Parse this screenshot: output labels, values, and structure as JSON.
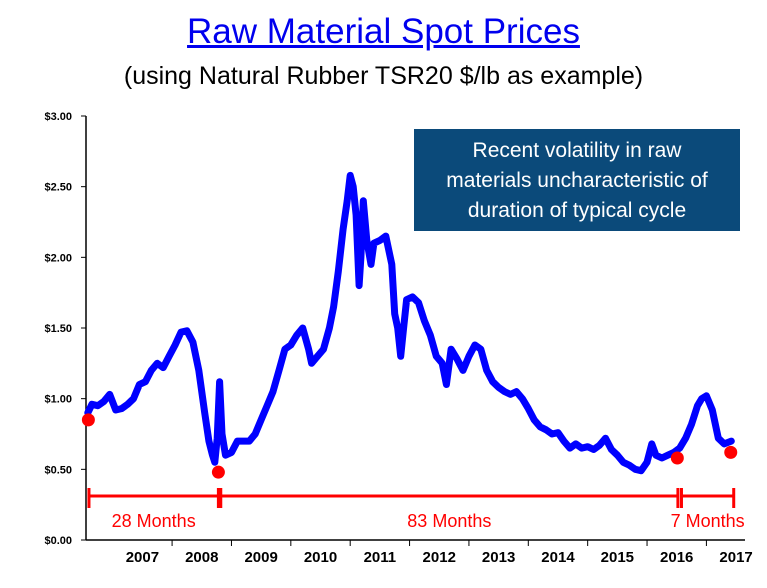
{
  "chart_data": {
    "type": "line",
    "title": "Raw Material Spot Prices",
    "subtitle": "(using Natural Rubber TSR20 $/lb as example)",
    "ylim": [
      0,
      3
    ],
    "xlim": [
      2006.55,
      2017.65
    ],
    "y_ticks": [
      "$0.00",
      "$0.50",
      "$1.00",
      "$1.50",
      "$2.00",
      "$2.50",
      "$3.00"
    ],
    "x_tick_labels": [
      "2007",
      "2008",
      "2009",
      "2010",
      "2011",
      "2012",
      "2013",
      "2014",
      "2015",
      "2016",
      "2017"
    ],
    "grid": false,
    "series": [
      {
        "color": "#0000ff",
        "points": [
          [
            2006.58,
            0.9
          ],
          [
            2006.65,
            0.96
          ],
          [
            2006.75,
            0.95
          ],
          [
            2006.85,
            0.98
          ],
          [
            2006.95,
            1.03
          ],
          [
            2007.05,
            0.92
          ],
          [
            2007.15,
            0.93
          ],
          [
            2007.25,
            0.96
          ],
          [
            2007.35,
            1.0
          ],
          [
            2007.45,
            1.1
          ],
          [
            2007.55,
            1.12
          ],
          [
            2007.65,
            1.2
          ],
          [
            2007.75,
            1.25
          ],
          [
            2007.85,
            1.22
          ],
          [
            2007.95,
            1.3
          ],
          [
            2008.05,
            1.38
          ],
          [
            2008.15,
            1.47
          ],
          [
            2008.25,
            1.48
          ],
          [
            2008.35,
            1.4
          ],
          [
            2008.45,
            1.2
          ],
          [
            2008.55,
            0.9
          ],
          [
            2008.62,
            0.7
          ],
          [
            2008.68,
            0.6
          ],
          [
            2008.72,
            0.55
          ],
          [
            2008.76,
            0.72
          ],
          [
            2008.8,
            1.12
          ],
          [
            2008.84,
            0.75
          ],
          [
            2008.9,
            0.6
          ],
          [
            2009.0,
            0.62
          ],
          [
            2009.1,
            0.7
          ],
          [
            2009.2,
            0.7
          ],
          [
            2009.3,
            0.7
          ],
          [
            2009.4,
            0.75
          ],
          [
            2009.5,
            0.85
          ],
          [
            2009.6,
            0.95
          ],
          [
            2009.7,
            1.05
          ],
          [
            2009.8,
            1.2
          ],
          [
            2009.9,
            1.35
          ],
          [
            2010.0,
            1.38
          ],
          [
            2010.1,
            1.45
          ],
          [
            2010.2,
            1.5
          ],
          [
            2010.3,
            1.35
          ],
          [
            2010.35,
            1.25
          ],
          [
            2010.45,
            1.3
          ],
          [
            2010.55,
            1.35
          ],
          [
            2010.65,
            1.5
          ],
          [
            2010.72,
            1.65
          ],
          [
            2010.8,
            1.9
          ],
          [
            2010.88,
            2.2
          ],
          [
            2010.95,
            2.4
          ],
          [
            2011.0,
            2.58
          ],
          [
            2011.05,
            2.5
          ],
          [
            2011.1,
            2.3
          ],
          [
            2011.15,
            1.8
          ],
          [
            2011.18,
            2.0
          ],
          [
            2011.22,
            2.4
          ],
          [
            2011.28,
            2.12
          ],
          [
            2011.35,
            1.95
          ],
          [
            2011.4,
            2.1
          ],
          [
            2011.5,
            2.12
          ],
          [
            2011.6,
            2.15
          ],
          [
            2011.7,
            1.95
          ],
          [
            2011.75,
            1.6
          ],
          [
            2011.8,
            1.5
          ],
          [
            2011.85,
            1.3
          ],
          [
            2011.9,
            1.5
          ],
          [
            2011.95,
            1.7
          ],
          [
            2012.05,
            1.72
          ],
          [
            2012.15,
            1.68
          ],
          [
            2012.25,
            1.55
          ],
          [
            2012.35,
            1.45
          ],
          [
            2012.45,
            1.3
          ],
          [
            2012.55,
            1.25
          ],
          [
            2012.62,
            1.1
          ],
          [
            2012.7,
            1.35
          ],
          [
            2012.8,
            1.28
          ],
          [
            2012.9,
            1.2
          ],
          [
            2013.0,
            1.3
          ],
          [
            2013.1,
            1.38
          ],
          [
            2013.2,
            1.35
          ],
          [
            2013.3,
            1.2
          ],
          [
            2013.4,
            1.12
          ],
          [
            2013.5,
            1.08
          ],
          [
            2013.6,
            1.05
          ],
          [
            2013.7,
            1.03
          ],
          [
            2013.8,
            1.05
          ],
          [
            2013.9,
            1.0
          ],
          [
            2014.0,
            0.93
          ],
          [
            2014.1,
            0.85
          ],
          [
            2014.2,
            0.8
          ],
          [
            2014.3,
            0.78
          ],
          [
            2014.4,
            0.75
          ],
          [
            2014.5,
            0.76
          ],
          [
            2014.6,
            0.7
          ],
          [
            2014.7,
            0.65
          ],
          [
            2014.8,
            0.68
          ],
          [
            2014.9,
            0.65
          ],
          [
            2015.0,
            0.66
          ],
          [
            2015.1,
            0.64
          ],
          [
            2015.2,
            0.67
          ],
          [
            2015.3,
            0.72
          ],
          [
            2015.4,
            0.64
          ],
          [
            2015.5,
            0.6
          ],
          [
            2015.6,
            0.55
          ],
          [
            2015.7,
            0.53
          ],
          [
            2015.8,
            0.5
          ],
          [
            2015.9,
            0.49
          ],
          [
            2016.0,
            0.55
          ],
          [
            2016.08,
            0.68
          ],
          [
            2016.15,
            0.6
          ],
          [
            2016.25,
            0.58
          ],
          [
            2016.35,
            0.6
          ],
          [
            2016.45,
            0.62
          ],
          [
            2016.55,
            0.65
          ],
          [
            2016.65,
            0.72
          ],
          [
            2016.75,
            0.82
          ],
          [
            2016.85,
            0.95
          ],
          [
            2016.92,
            1.0
          ],
          [
            2017.0,
            1.02
          ],
          [
            2017.1,
            0.92
          ],
          [
            2017.2,
            0.72
          ],
          [
            2017.3,
            0.68
          ],
          [
            2017.42,
            0.7
          ]
        ]
      }
    ],
    "markers": [
      {
        "x": 2006.59,
        "y": 0.85,
        "color": "#ff0000"
      },
      {
        "x": 2008.78,
        "y": 0.48,
        "color": "#ff0000"
      },
      {
        "x": 2016.51,
        "y": 0.58,
        "color": "#ff0000"
      },
      {
        "x": 2017.41,
        "y": 0.62,
        "color": "#ff0000"
      }
    ],
    "annotations": [
      {
        "text": "Recent volatility in raw materials uncharacteristic of duration of typical cycle"
      }
    ],
    "periods": [
      {
        "label": "28 Months",
        "x_start": 2006.6,
        "x_end": 2008.78
      },
      {
        "label": "83 Months",
        "x_start": 2008.82,
        "x_end": 2016.52
      },
      {
        "label": "7 Months",
        "x_start": 2016.58,
        "x_end": 2017.46
      }
    ]
  },
  "callout_lines": [
    "Recent volatility in raw",
    "materials uncharacteristic of",
    "duration of typical cycle"
  ],
  "colors": {
    "line": "#0000ff",
    "marker": "#ff0000",
    "bracket": "#ff0000",
    "callout_bg": "#0b4a7a",
    "title": "#0000ee"
  }
}
